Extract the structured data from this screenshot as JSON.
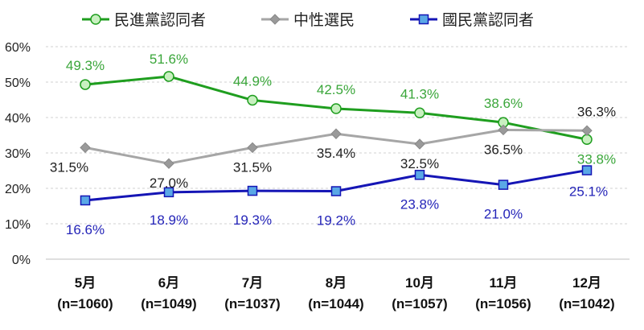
{
  "chart_data": {
    "type": "line",
    "categories": [
      "5月",
      "6月",
      "7月",
      "8月",
      "10月",
      "11月",
      "12月"
    ],
    "category_samples": [
      "(n=1060)",
      "(n=1049)",
      "(n=1037)",
      "(n=1044)",
      "(n=1057)",
      "(n=1056)",
      "(n=1042)"
    ],
    "ylim": [
      0,
      60
    ],
    "yticks": [
      "0%",
      "10%",
      "20%",
      "30%",
      "40%",
      "50%",
      "60%"
    ],
    "grid": true,
    "legend_position": "top",
    "series": [
      {
        "name": "民進黨認同者",
        "values": [
          49.3,
          51.6,
          44.9,
          42.5,
          41.3,
          38.6,
          33.8
        ],
        "labels": [
          "49.3%",
          "51.6%",
          "44.9%",
          "42.5%",
          "41.3%",
          "38.6%",
          "33.8%"
        ],
        "color": "#1f9e1f",
        "label_color": "#3aa63a",
        "marker": "circle",
        "marker_fill": "#c8f0c0"
      },
      {
        "name": "中性選民",
        "values": [
          31.5,
          27.0,
          31.5,
          35.4,
          32.5,
          36.5,
          36.3
        ],
        "labels": [
          "31.5%",
          "27.0%",
          "31.5%",
          "35.4%",
          "32.5%",
          "36.5%",
          "36.3%"
        ],
        "color": "#a6a6a6",
        "label_color": "#222222",
        "marker": "diamond",
        "marker_fill": "#9a9a9a"
      },
      {
        "name": "國民黨認同者",
        "values": [
          16.6,
          18.9,
          19.3,
          19.2,
          23.8,
          21.0,
          25.1
        ],
        "labels": [
          "16.6%",
          "18.9%",
          "19.3%",
          "19.2%",
          "23.8%",
          "21.0%",
          "25.1%"
        ],
        "color": "#1515b5",
        "label_color": "#2424b8",
        "marker": "square",
        "marker_fill": "#5aa8e6"
      }
    ]
  }
}
